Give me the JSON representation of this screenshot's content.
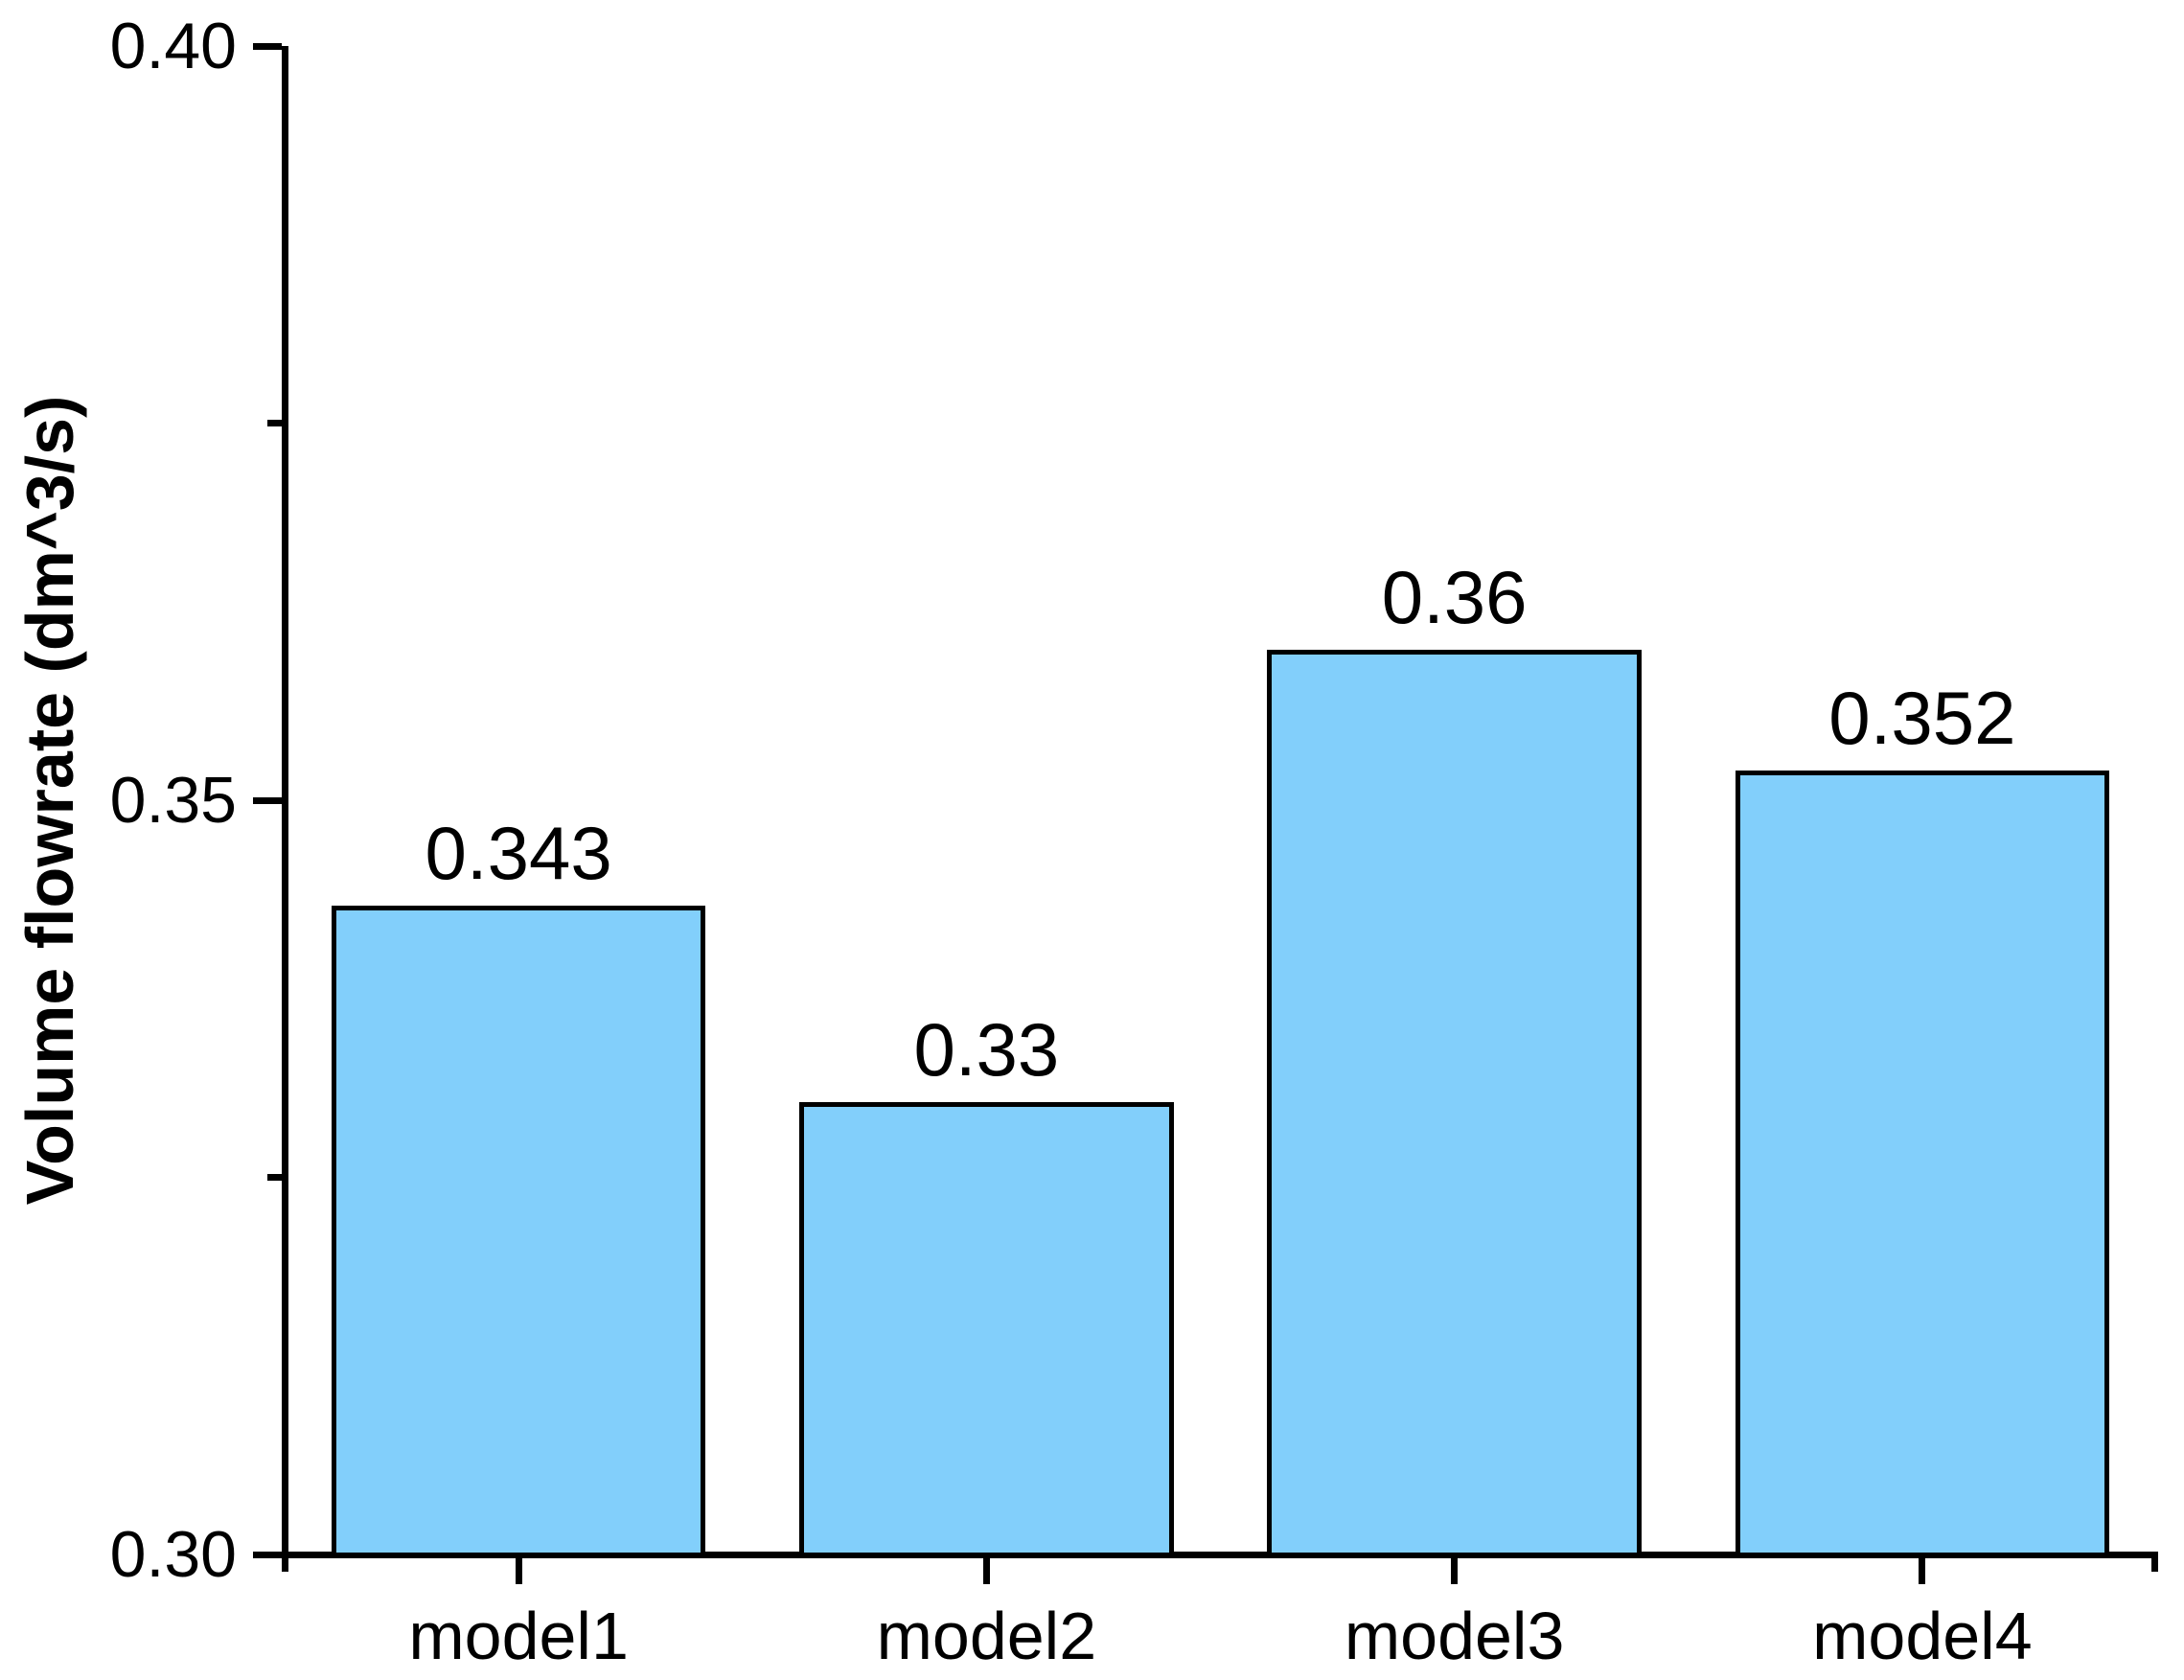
{
  "chart_data": {
    "type": "bar",
    "title": "",
    "xlabel": "",
    "ylabel": "Volume flowrate (dm^3/s)",
    "categories": [
      "model1",
      "model2",
      "model3",
      "model4"
    ],
    "values": [
      0.343,
      0.33,
      0.36,
      0.352
    ],
    "value_labels": [
      "0.343",
      "0.33",
      "0.36",
      "0.352"
    ],
    "ylim": [
      0.3,
      0.4
    ],
    "yticks": [
      {
        "value": 0.3,
        "label": "0.30"
      },
      {
        "value": 0.35,
        "label": "0.35"
      },
      {
        "value": 0.4,
        "label": "0.40"
      }
    ],
    "yticks_minor": [
      0.325,
      0.375
    ],
    "grid": false,
    "legend": null,
    "bar_width_fraction": 0.8,
    "colors": {
      "bar_fill": "#82CFFB",
      "bar_border": "#000000",
      "axis": "#000000",
      "text": "#000000",
      "background": "#FFFFFF"
    }
  }
}
